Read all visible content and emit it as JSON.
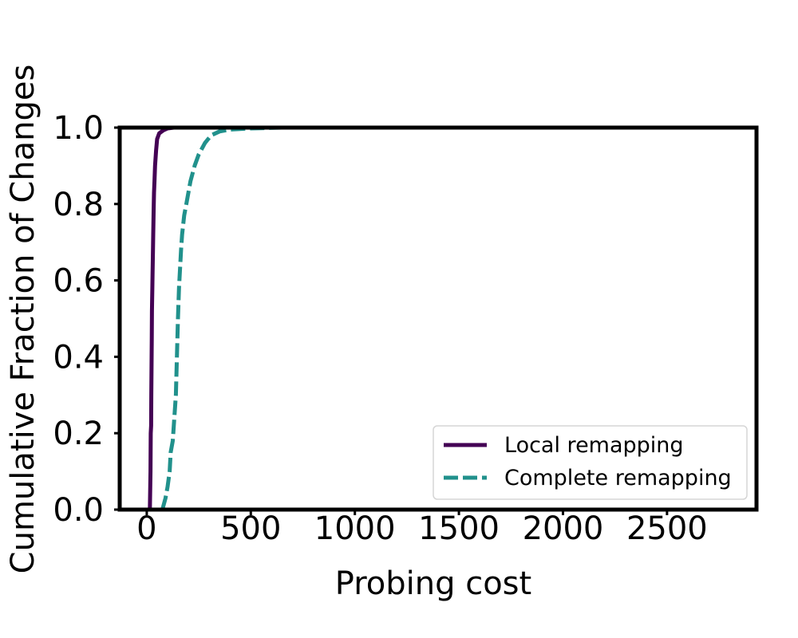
{
  "chart_data": {
    "type": "line",
    "title": "",
    "xlabel": "Probing cost",
    "ylabel": "Cumulative Fraction of Changes",
    "xlim": [
      -130,
      2930
    ],
    "ylim": [
      0,
      1
    ],
    "x_ticks": [
      0,
      500,
      1000,
      1500,
      2000,
      2500
    ],
    "x_tick_labels": [
      "0",
      "500",
      "1000",
      "1500",
      "2000",
      "2500"
    ],
    "y_ticks": [
      0.0,
      0.2,
      0.4,
      0.6,
      0.8,
      1.0
    ],
    "y_tick_labels": [
      "0.0",
      "0.2",
      "0.4",
      "0.6",
      "0.8",
      "1.0"
    ],
    "grid": false,
    "legend_position": "bottom-right",
    "series": [
      {
        "name": "Local remapping",
        "color": "#440154",
        "style": "solid",
        "x": [
          15,
          18,
          19,
          21,
          22,
          24,
          25,
          27,
          28,
          30,
          31,
          33,
          35,
          37,
          40,
          45,
          50,
          60,
          80,
          100,
          130,
          2800
        ],
        "y": [
          0.0,
          0.1,
          0.2,
          0.22,
          0.3,
          0.45,
          0.52,
          0.58,
          0.62,
          0.68,
          0.72,
          0.78,
          0.83,
          0.86,
          0.9,
          0.94,
          0.97,
          0.985,
          0.993,
          0.998,
          1.0,
          1.0
        ]
      },
      {
        "name": "Complete remapping",
        "color": "#21918c",
        "style": "dashed",
        "x": [
          75,
          90,
          100,
          110,
          115,
          125,
          130,
          140,
          145,
          150,
          155,
          160,
          165,
          170,
          180,
          190,
          200,
          210,
          230,
          250,
          280,
          310,
          350,
          400,
          500,
          650,
          2800
        ],
        "y": [
          0.0,
          0.03,
          0.06,
          0.1,
          0.15,
          0.18,
          0.22,
          0.3,
          0.4,
          0.5,
          0.58,
          0.63,
          0.68,
          0.72,
          0.77,
          0.8,
          0.83,
          0.86,
          0.9,
          0.93,
          0.96,
          0.98,
          0.99,
          0.995,
          0.998,
          1.0,
          1.0
        ]
      }
    ]
  }
}
